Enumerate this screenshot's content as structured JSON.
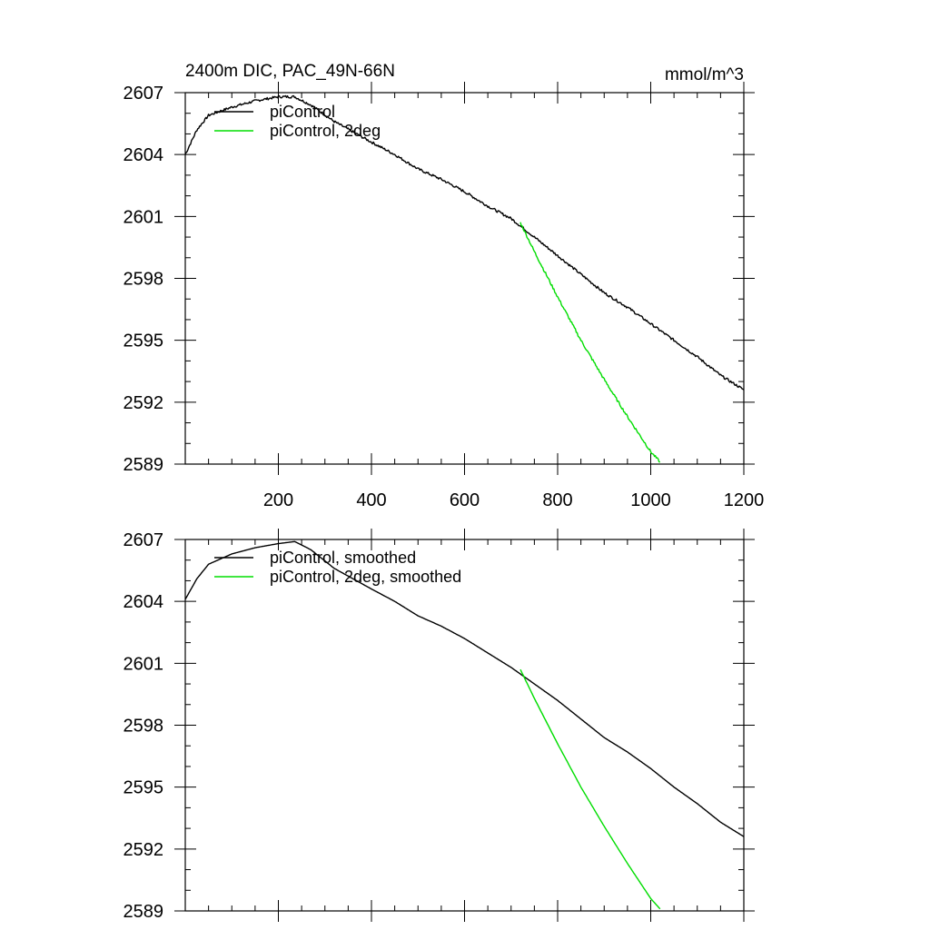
{
  "chart_data": [
    {
      "type": "line",
      "title": "2400m DIC, PAC_49N-66N",
      "units": "mmol/m^3",
      "xlim": [
        0,
        1200
      ],
      "ylim": [
        2589,
        2607
      ],
      "xticks": [
        200,
        400,
        600,
        800,
        1000,
        1200
      ],
      "xticklabels": [
        "200",
        "400",
        "600",
        "800",
        "1000",
        "1200"
      ],
      "yticks": [
        2589,
        2592,
        2595,
        2598,
        2601,
        2604,
        2607
      ],
      "yticklabels": [
        "2589",
        "2592",
        "2595",
        "2598",
        "2601",
        "2604",
        "2607"
      ],
      "legend_placement": "top-left",
      "series": [
        {
          "name": "piControl",
          "color": "#000000",
          "smoothed": false,
          "x": [
            0,
            25,
            50,
            100,
            150,
            200,
            235,
            270,
            320,
            400,
            450,
            500,
            550,
            600,
            650,
            700,
            750,
            800,
            850,
            900,
            950,
            1000,
            1050,
            1100,
            1150,
            1200
          ],
          "y": [
            2604.0,
            2605.2,
            2605.9,
            2606.3,
            2606.6,
            2606.8,
            2606.8,
            2606.4,
            2605.6,
            2604.6,
            2604.0,
            2603.3,
            2602.8,
            2602.2,
            2601.5,
            2600.9,
            2600.0,
            2599.1,
            2598.2,
            2597.3,
            2596.6,
            2595.8,
            2595.0,
            2594.2,
            2593.3,
            2592.6
          ]
        },
        {
          "name": "piControl, 2deg",
          "color": "#00dd00",
          "smoothed": false,
          "x": [
            720,
            750,
            800,
            850,
            900,
            950,
            1000,
            1020
          ],
          "y": [
            2600.7,
            2599.3,
            2597.1,
            2595.0,
            2593.1,
            2591.3,
            2589.6,
            2589.1
          ]
        }
      ]
    },
    {
      "type": "line",
      "title": "",
      "units": "",
      "xlim": [
        0,
        1200
      ],
      "ylim": [
        2589,
        2607
      ],
      "xticks": [
        200,
        400,
        600,
        800,
        1000,
        1200
      ],
      "xticklabels": [],
      "yticks": [
        2589,
        2592,
        2595,
        2598,
        2601,
        2604,
        2607
      ],
      "yticklabels": [
        "2589",
        "2592",
        "2595",
        "2598",
        "2601",
        "2604",
        "2607"
      ],
      "legend_placement": "top-left",
      "series": [
        {
          "name": "piControl, smoothed",
          "color": "#000000",
          "smoothed": true,
          "x": [
            0,
            25,
            50,
            100,
            150,
            200,
            235,
            270,
            320,
            400,
            450,
            500,
            550,
            600,
            650,
            700,
            750,
            800,
            850,
            900,
            950,
            1000,
            1050,
            1100,
            1150,
            1200
          ],
          "y": [
            2604.1,
            2605.1,
            2605.8,
            2606.3,
            2606.6,
            2606.8,
            2606.9,
            2606.5,
            2605.6,
            2604.6,
            2604.0,
            2603.3,
            2602.8,
            2602.2,
            2601.5,
            2600.8,
            2600.0,
            2599.2,
            2598.3,
            2597.4,
            2596.7,
            2595.9,
            2595.0,
            2594.2,
            2593.3,
            2592.6
          ]
        },
        {
          "name": "piControl, 2deg, smoothed",
          "color": "#00dd00",
          "smoothed": true,
          "x": [
            720,
            750,
            800,
            850,
            900,
            950,
            1000,
            1020
          ],
          "y": [
            2600.7,
            2599.3,
            2597.1,
            2595.0,
            2593.1,
            2591.3,
            2589.6,
            2589.1
          ]
        }
      ]
    }
  ]
}
